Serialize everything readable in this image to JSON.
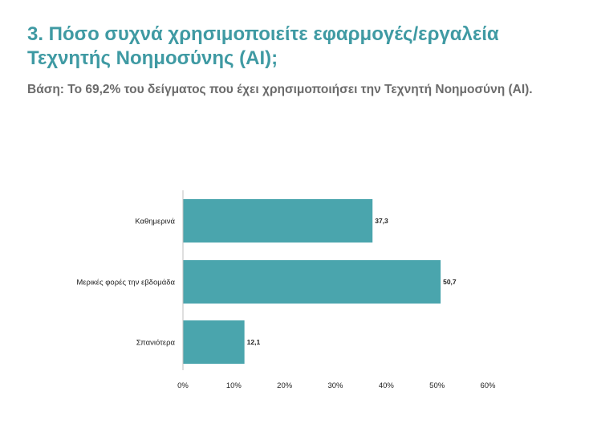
{
  "header": {
    "title": "3. Πόσο συχνά χρησιμοποιείτε εφαρμογές/εργαλεία Τεχνητής Νοημοσύνης (AI);",
    "subtitle": "Βάση: Το 69,2% του δείγματος που έχει χρησιμοποιήσει την Τεχνητή Νοημοσύνη (AI)."
  },
  "colors": {
    "title": "#3f9aa3",
    "bar": "#4aa5ad",
    "subtitle": "#6b6b6b"
  },
  "chart_data": {
    "type": "bar",
    "orientation": "horizontal",
    "categories": [
      "Καθημερινά",
      "Μερικές φορές την εβδομάδα",
      "Σπανιότερα"
    ],
    "values": [
      37.3,
      50.7,
      12.1
    ],
    "value_labels": [
      "37,3",
      "50,7",
      "12,1"
    ],
    "xlim": [
      0,
      60
    ],
    "x_ticks": [
      0,
      10,
      20,
      30,
      40,
      50,
      60
    ],
    "x_tick_labels": [
      "0%",
      "10%",
      "20%",
      "30%",
      "40%",
      "50%",
      "60%"
    ],
    "grid": false,
    "legend": "none"
  }
}
